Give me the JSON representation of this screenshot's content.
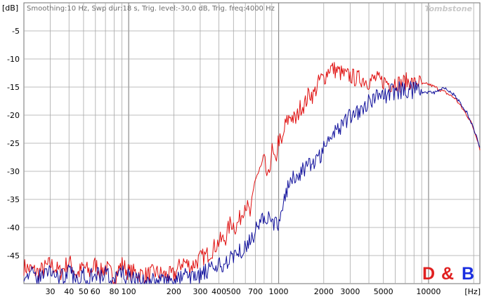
{
  "header": {
    "y_unit": "[dB]",
    "settings_text": "Smoothing:10 Hz, Swp dur:18 s, Trig. level:-30,0 dB, Trig. freq:4000 Hz",
    "brand": "Tombstone"
  },
  "logo": {
    "d": "D",
    "amp": "&",
    "b": "B"
  },
  "x_unit": "[Hz]",
  "colors": {
    "red_series": "#e01010",
    "blue_series": "#10109c",
    "grid": "#a8a8a8",
    "frame": "#707070"
  },
  "chart_data": {
    "type": "line",
    "title": "",
    "xlabel": "[Hz]",
    "ylabel": "[dB]",
    "xscale": "log",
    "xlim": [
      20,
      22000
    ],
    "ylim": [
      -50,
      0
    ],
    "grid": true,
    "x_tick_labels": [
      {
        "value": 30,
        "label": "30"
      },
      {
        "value": 40,
        "label": "40"
      },
      {
        "value": 50,
        "label": "50"
      },
      {
        "value": 60,
        "label": "60"
      },
      {
        "value": 80,
        "label": "80"
      },
      {
        "value": 100,
        "label": "100"
      },
      {
        "value": 200,
        "label": "200"
      },
      {
        "value": 300,
        "label": "300"
      },
      {
        "value": 400,
        "label": "400"
      },
      {
        "value": 500,
        "label": "500"
      },
      {
        "value": 700,
        "label": "700"
      },
      {
        "value": 1000,
        "label": "1000"
      },
      {
        "value": 2000,
        "label": "2000"
      },
      {
        "value": 3000,
        "label": "3000"
      },
      {
        "value": 5000,
        "label": "5000"
      },
      {
        "value": 10000,
        "label": "10000"
      }
    ],
    "y_tick_labels": [
      {
        "value": -5,
        "label": "-5"
      },
      {
        "value": -10,
        "label": "-10"
      },
      {
        "value": -15,
        "label": "-15"
      },
      {
        "value": -20,
        "label": "-20"
      },
      {
        "value": -25,
        "label": "-25"
      },
      {
        "value": -30,
        "label": "-30"
      },
      {
        "value": -35,
        "label": "-35"
      },
      {
        "value": -40,
        "label": "-40"
      },
      {
        "value": -45,
        "label": "-45"
      }
    ],
    "series": [
      {
        "color": "#e01010",
        "x": [
          20,
          25,
          30,
          35,
          40,
          45,
          50,
          55,
          60,
          65,
          70,
          80,
          90,
          100,
          110,
          130,
          150,
          175,
          200,
          230,
          260,
          300,
          330,
          360,
          400,
          440,
          480,
          520,
          560,
          600,
          650,
          700,
          750,
          800,
          850,
          900,
          950,
          1000,
          1050,
          1100,
          1200,
          1300,
          1400,
          1500,
          1600,
          1700,
          1800,
          1900,
          2000,
          2200,
          2400,
          2600,
          2800,
          3000,
          3300,
          3600,
          4000,
          4400,
          4800,
          5200,
          5600,
          6000,
          6500,
          7000,
          7500,
          8000,
          8500,
          9000,
          10000,
          11000,
          12000,
          13000,
          14000,
          15000,
          16000,
          17000,
          18000,
          19000,
          20000,
          21000,
          22000
        ],
        "y": [
          -47,
          -48,
          -46.5,
          -48,
          -46,
          -48.5,
          -47,
          -48,
          -46.5,
          -48,
          -47,
          -49,
          -46.5,
          -48,
          -48,
          -48.5,
          -48,
          -48.5,
          -48.5,
          -46,
          -47,
          -45.5,
          -45,
          -44,
          -42.5,
          -42,
          -39,
          -40,
          -38,
          -35.5,
          -38,
          -31,
          -30,
          -28,
          -32,
          -26,
          -29,
          -24,
          -25.5,
          -22,
          -20,
          -21,
          -18.5,
          -18,
          -16,
          -16.5,
          -15,
          -13.5,
          -13.5,
          -11.5,
          -12,
          -12.5,
          -13,
          -13,
          -13.5,
          -13.5,
          -14,
          -13.5,
          -14,
          -14,
          -14.5,
          -14,
          -14.5,
          -14,
          -14,
          -14.5,
          -14,
          -14.5,
          -14.5,
          -15,
          -15.5,
          -16,
          -16.5,
          -17,
          -18,
          -19,
          -20,
          -21,
          -22.5,
          -24,
          -26
        ]
      },
      {
        "color": "#10109c",
        "x": [
          20,
          25,
          30,
          35,
          40,
          45,
          50,
          55,
          60,
          65,
          70,
          80,
          90,
          100,
          110,
          130,
          150,
          175,
          200,
          230,
          260,
          300,
          330,
          360,
          400,
          440,
          480,
          520,
          560,
          600,
          650,
          700,
          750,
          800,
          850,
          900,
          950,
          1000,
          1050,
          1100,
          1200,
          1300,
          1400,
          1500,
          1600,
          1700,
          1800,
          1900,
          2000,
          2200,
          2400,
          2600,
          2800,
          3000,
          3300,
          3600,
          4000,
          4400,
          4800,
          5200,
          5600,
          6000,
          6500,
          7000,
          7500,
          8000,
          8500,
          9000,
          10000,
          11000,
          12000,
          13000,
          14000,
          15000,
          16000,
          17000,
          18000,
          19000,
          20000,
          21000,
          22000
        ],
        "y": [
          -48,
          -49,
          -47.5,
          -49,
          -48,
          -49.5,
          -48,
          -49,
          -47.5,
          -49,
          -48,
          -49.5,
          -48,
          -49,
          -49.5,
          -50,
          -49.5,
          -49.5,
          -50,
          -48.5,
          -49,
          -48.5,
          -48,
          -47.5,
          -47,
          -46.5,
          -45,
          -44.5,
          -44,
          -43,
          -42.5,
          -40.5,
          -39,
          -38,
          -38.5,
          -39,
          -39.5,
          -40,
          -36,
          -34,
          -32,
          -31,
          -30,
          -30,
          -29,
          -28.5,
          -27.5,
          -27,
          -26,
          -24,
          -22.5,
          -22,
          -21,
          -20,
          -19.5,
          -18.5,
          -17.5,
          -17,
          -16.5,
          -16.5,
          -16,
          -16,
          -15.5,
          -15.5,
          -15.5,
          -15.5,
          -15.5,
          -16,
          -16,
          -16,
          -15.5,
          -15,
          -16,
          -16.5,
          -17.5,
          -18.5,
          -19.5,
          -21,
          -22.5,
          -24,
          -26
        ]
      }
    ]
  }
}
